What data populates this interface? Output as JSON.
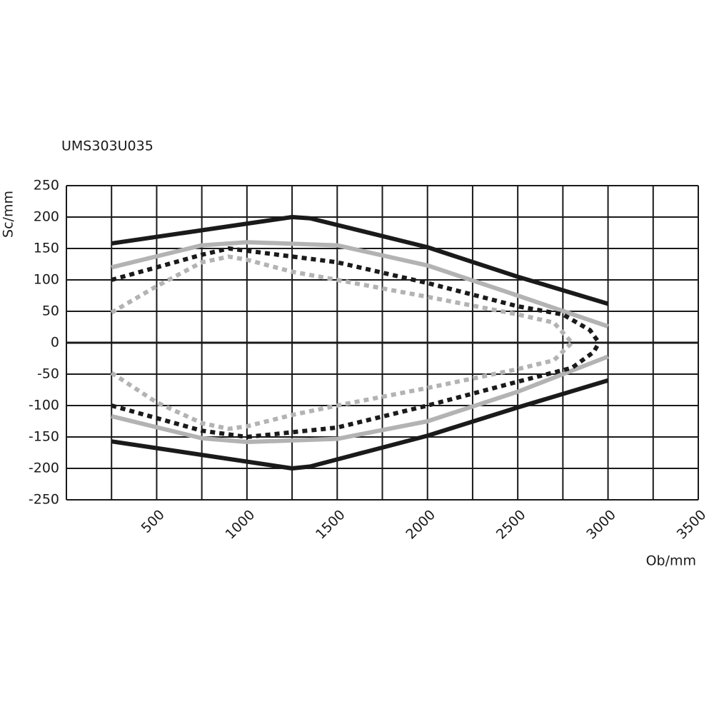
{
  "chart_data": {
    "type": "line",
    "title": "UMS303U035",
    "x_label": "Ob/mm",
    "y_label": "Sc/mm",
    "xlim": [
      0,
      3500
    ],
    "ylim": [
      -250,
      250
    ],
    "xticks": [
      500,
      1000,
      1500,
      2000,
      2500,
      3000,
      3500
    ],
    "yticks": [
      -250,
      -200,
      -150,
      -100,
      -50,
      0,
      50,
      100,
      150,
      200,
      250
    ],
    "xgrid": [
      0,
      250,
      500,
      750,
      1000,
      1250,
      1500,
      1750,
      2000,
      2250,
      2500,
      2750,
      3000,
      3250,
      3500
    ],
    "grid": true,
    "series": [
      {
        "color": "#1a1a1a",
        "style": "solid",
        "x": [
          250,
          1250,
          1350,
          2000,
          2500,
          3000
        ],
        "values": [
          158,
          200,
          198,
          152,
          105,
          62
        ]
      },
      {
        "color": "#1a1a1a",
        "style": "solid",
        "x": [
          250,
          1250,
          1350,
          2000,
          2500,
          3000
        ],
        "values": [
          -157,
          -200,
          -197,
          -148,
          -103,
          -60
        ]
      },
      {
        "color": "#b3b3b3",
        "style": "solid",
        "x": [
          250,
          750,
          1000,
          1500,
          2000,
          2500,
          3000
        ],
        "values": [
          120,
          155,
          160,
          155,
          123,
          75,
          26
        ]
      },
      {
        "color": "#b3b3b3",
        "style": "solid",
        "x": [
          250,
          750,
          1000,
          1500,
          2000,
          2500,
          3000
        ],
        "values": [
          -117,
          -152,
          -158,
          -153,
          -125,
          -78,
          -22
        ]
      },
      {
        "color": "#1a1a1a",
        "style": "dotted",
        "x": [
          250,
          750,
          900,
          1500,
          2000,
          2500,
          2750,
          2900,
          2950
        ],
        "values": [
          100,
          140,
          150,
          128,
          95,
          58,
          45,
          20,
          0
        ]
      },
      {
        "color": "#1a1a1a",
        "style": "dotted",
        "x": [
          250,
          750,
          1000,
          1500,
          2000,
          2500,
          2800,
          2920,
          2950
        ],
        "values": [
          -100,
          -140,
          -150,
          -135,
          -100,
          -62,
          -40,
          -15,
          0
        ]
      },
      {
        "color": "#b3b3b3",
        "style": "dotted",
        "x": [
          250,
          500,
          750,
          900,
          1000,
          1250,
          1500,
          2000,
          2500,
          2700,
          2800
        ],
        "values": [
          48,
          90,
          128,
          137,
          132,
          113,
          100,
          73,
          45,
          32,
          0
        ]
      },
      {
        "color": "#b3b3b3",
        "style": "dotted",
        "x": [
          250,
          500,
          750,
          900,
          1000,
          1250,
          1500,
          2000,
          2500,
          2700,
          2800
        ],
        "values": [
          -48,
          -95,
          -128,
          -137,
          -133,
          -115,
          -100,
          -72,
          -42,
          -28,
          0
        ]
      }
    ]
  }
}
